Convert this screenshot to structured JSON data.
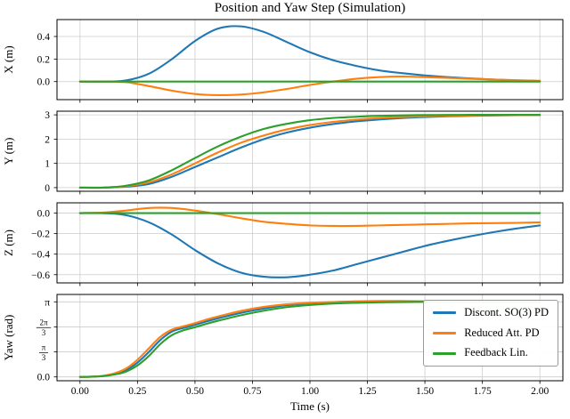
{
  "figure": {
    "title": "Position and Yaw Step (Simulation)",
    "xlabel": "Time (s)",
    "xlim": [
      -0.1,
      2.1
    ],
    "x_ticks": [
      0,
      0.25,
      0.5,
      0.75,
      1.0,
      1.25,
      1.5,
      1.75,
      2.0
    ],
    "x_tick_labels": [
      "0.00",
      "0.25",
      "0.50",
      "0.75",
      "1.00",
      "1.25",
      "1.50",
      "1.75",
      "2.00"
    ],
    "grid": "on",
    "colors": {
      "grid": "#cccccc",
      "axis": "#000000"
    }
  },
  "legend": {
    "location": "upper right of yaw panel",
    "entries": [
      {
        "label": "Discont. SO(3) PD",
        "color": "#1f77b4"
      },
      {
        "label": "Reduced Att. PD",
        "color": "#ff7f0e"
      },
      {
        "label": "Feedback Lin.",
        "color": "#2ca02c"
      }
    ]
  },
  "chart_data": [
    {
      "type": "line",
      "ylabel": "X (m)",
      "ylim": [
        -0.16,
        0.55
      ],
      "yticks": [
        0.0,
        0.2,
        0.4
      ],
      "ytick_labels": [
        "0.0",
        "0.2",
        "0.4"
      ],
      "x": [
        0,
        0.1,
        0.2,
        0.3,
        0.4,
        0.5,
        0.6,
        0.7,
        0.8,
        0.9,
        1.0,
        1.1,
        1.2,
        1.3,
        1.4,
        1.5,
        1.6,
        1.7,
        1.8,
        1.9,
        2.0
      ],
      "series": [
        {
          "name": "Discont. SO(3) PD",
          "color": "#1f77b4",
          "values": [
            0,
            0,
            0.01,
            0.07,
            0.2,
            0.36,
            0.47,
            0.49,
            0.44,
            0.35,
            0.26,
            0.19,
            0.14,
            0.1,
            0.075,
            0.055,
            0.04,
            0.028,
            0.018,
            0.01,
            0.005
          ]
        },
        {
          "name": "Reduced Att. PD",
          "color": "#ff7f0e",
          "values": [
            0,
            0,
            -0.005,
            -0.04,
            -0.08,
            -0.11,
            -0.12,
            -0.115,
            -0.095,
            -0.065,
            -0.03,
            0,
            0.025,
            0.04,
            0.045,
            0.04,
            0.033,
            0.025,
            0.018,
            0.012,
            0.007
          ]
        },
        {
          "name": "Feedback Lin.",
          "color": "#2ca02c",
          "values": [
            0,
            0,
            0,
            0,
            0,
            0,
            0,
            0,
            0,
            0,
            0,
            0,
            0,
            0,
            0,
            0,
            0,
            0,
            0,
            0,
            0
          ]
        }
      ]
    },
    {
      "type": "line",
      "ylabel": "Y (m)",
      "ylim": [
        -0.15,
        3.15
      ],
      "yticks": [
        0,
        1,
        2,
        3
      ],
      "ytick_labels": [
        "0",
        "1",
        "2",
        "3"
      ],
      "x": [
        0,
        0.1,
        0.2,
        0.3,
        0.4,
        0.5,
        0.6,
        0.7,
        0.8,
        0.9,
        1.0,
        1.1,
        1.2,
        1.3,
        1.4,
        1.5,
        1.6,
        1.7,
        1.8,
        1.9,
        2.0
      ],
      "series": [
        {
          "name": "Discont. SO(3) PD",
          "color": "#1f77b4",
          "values": [
            0,
            0,
            0.04,
            0.15,
            0.45,
            0.85,
            1.25,
            1.65,
            2.0,
            2.27,
            2.47,
            2.62,
            2.73,
            2.81,
            2.87,
            2.91,
            2.94,
            2.96,
            2.975,
            2.985,
            2.99
          ]
        },
        {
          "name": "Reduced Att. PD",
          "color": "#ff7f0e",
          "values": [
            0,
            0,
            0.06,
            0.22,
            0.55,
            1.0,
            1.45,
            1.85,
            2.15,
            2.4,
            2.58,
            2.71,
            2.8,
            2.87,
            2.91,
            2.94,
            2.96,
            2.975,
            2.985,
            2.99,
            2.995
          ]
        },
        {
          "name": "Feedback Lin.",
          "color": "#2ca02c",
          "values": [
            0,
            0,
            0.08,
            0.3,
            0.72,
            1.22,
            1.7,
            2.1,
            2.42,
            2.63,
            2.78,
            2.87,
            2.92,
            2.96,
            2.98,
            2.99,
            2.995,
            3.0,
            3.0,
            3.0,
            3.0
          ]
        }
      ]
    },
    {
      "type": "line",
      "ylabel": "Z (m)",
      "ylim": [
        -0.68,
        0.1
      ],
      "yticks": [
        -0.6,
        -0.4,
        -0.2,
        0.0
      ],
      "ytick_labels": [
        "−0.6",
        "−0.4",
        "−0.2",
        "0.0"
      ],
      "x": [
        0,
        0.1,
        0.2,
        0.3,
        0.4,
        0.5,
        0.6,
        0.7,
        0.8,
        0.9,
        1.0,
        1.1,
        1.2,
        1.3,
        1.4,
        1.5,
        1.6,
        1.7,
        1.8,
        1.9,
        2.0
      ],
      "series": [
        {
          "name": "Discont. SO(3) PD",
          "color": "#1f77b4",
          "values": [
            0,
            0,
            -0.02,
            -0.09,
            -0.21,
            -0.36,
            -0.49,
            -0.58,
            -0.62,
            -0.625,
            -0.6,
            -0.56,
            -0.5,
            -0.44,
            -0.38,
            -0.32,
            -0.27,
            -0.225,
            -0.185,
            -0.15,
            -0.12
          ]
        },
        {
          "name": "Reduced Att. PD",
          "color": "#ff7f0e",
          "values": [
            0,
            0.005,
            0.025,
            0.05,
            0.05,
            0.025,
            -0.01,
            -0.05,
            -0.085,
            -0.105,
            -0.12,
            -0.125,
            -0.125,
            -0.12,
            -0.115,
            -0.11,
            -0.105,
            -0.1,
            -0.098,
            -0.095,
            -0.09
          ]
        },
        {
          "name": "Feedback Lin.",
          "color": "#2ca02c",
          "values": [
            0,
            0,
            0,
            0,
            0,
            0,
            0,
            0,
            0,
            0,
            0,
            0,
            0,
            0,
            0,
            0,
            0,
            0,
            0,
            0,
            0
          ]
        }
      ]
    },
    {
      "type": "line",
      "ylabel": "Yaw (rad)",
      "ylim": [
        -0.16,
        3.45
      ],
      "yticks": [
        0,
        1.0472,
        2.0944,
        3.1416
      ],
      "ytick_labels": [
        "0.0",
        "π/3",
        "2π/3",
        "π"
      ],
      "x": [
        0,
        0.05,
        0.1,
        0.15,
        0.2,
        0.25,
        0.3,
        0.35,
        0.4,
        0.45,
        0.5,
        0.55,
        0.6,
        0.7,
        0.8,
        0.9,
        1.0,
        1.1,
        1.2,
        1.3,
        1.4,
        1.5,
        1.6,
        1.7,
        1.8,
        1.9,
        2.0
      ],
      "series": [
        {
          "name": "Discont. SO(3) PD",
          "color": "#1f77b4",
          "values": [
            0,
            0.01,
            0.04,
            0.12,
            0.28,
            0.6,
            1.05,
            1.55,
            1.9,
            2.05,
            2.18,
            2.32,
            2.45,
            2.68,
            2.86,
            3.0,
            3.08,
            3.13,
            3.16,
            3.17,
            3.17,
            3.16,
            3.15,
            3.15,
            3.14,
            3.14,
            3.14
          ]
        },
        {
          "name": "Reduced Att. PD",
          "color": "#ff7f0e",
          "values": [
            0,
            0.01,
            0.05,
            0.15,
            0.35,
            0.72,
            1.2,
            1.68,
            1.98,
            2.12,
            2.25,
            2.4,
            2.53,
            2.76,
            2.93,
            3.04,
            3.1,
            3.13,
            3.145,
            3.15,
            3.15,
            3.145,
            3.14,
            3.14,
            3.14,
            3.14,
            3.14
          ]
        },
        {
          "name": "Feedback Lin.",
          "color": "#2ca02c",
          "values": [
            0,
            0.01,
            0.03,
            0.1,
            0.22,
            0.48,
            0.88,
            1.38,
            1.75,
            1.95,
            2.08,
            2.22,
            2.35,
            2.58,
            2.77,
            2.92,
            3.01,
            3.07,
            3.1,
            3.12,
            3.13,
            3.14,
            3.14,
            3.14,
            3.14,
            3.14,
            3.14
          ]
        }
      ]
    }
  ]
}
